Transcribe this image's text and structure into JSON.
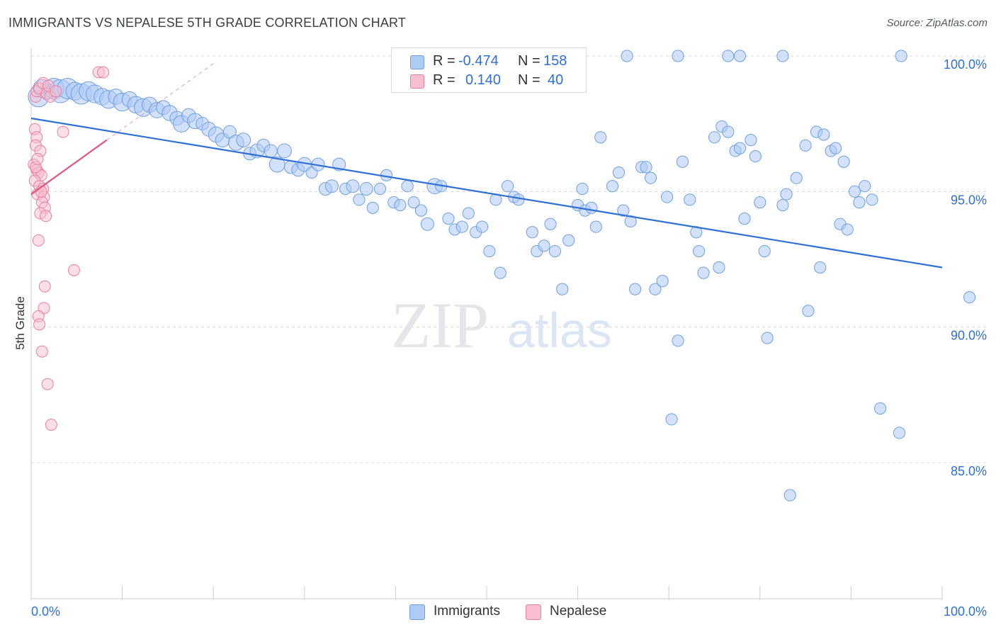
{
  "title": "IMMIGRANTS VS NEPALESE 5TH GRADE CORRELATION CHART",
  "source": "Source: ZipAtlas.com",
  "watermark": {
    "zip": "ZIP",
    "atlas": "atlas"
  },
  "colors": {
    "immigrants_fill": "#aecbf5",
    "immigrants_stroke": "#6f9fe0",
    "immigrants_line": "#2f6fd6",
    "nepalese_fill": "#f8bfd0",
    "nepalese_stroke": "#ea7fa0",
    "nepalese_line": "#e0557f",
    "axis_label": "#2f6fd6",
    "grid": "#d5d9de"
  },
  "legend_box": {
    "rows": [
      {
        "r_label": "R =",
        "r_value": "-0.474",
        "n_label": "N =",
        "n_value": "158"
      },
      {
        "r_label": "R =",
        "r_value": "0.140",
        "n_label": "N =",
        "n_value": "40"
      }
    ]
  },
  "bottom_legend": {
    "immigrants": "Immigrants",
    "nepalese": "Nepalese"
  },
  "chart_data": {
    "type": "scatter",
    "title": "IMMIGRANTS VS NEPALESE 5TH GRADE CORRELATION CHART",
    "ylabel": "5th Grade",
    "xlabel": "",
    "x_tick_labels": [
      "0.0%",
      "100.0%"
    ],
    "y_tick_labels": [
      "100.0%",
      "95.0%",
      "90.0%",
      "85.0%"
    ],
    "y_ticks": [
      100.0,
      95.0,
      90.0,
      85.0
    ],
    "xlim": [
      0,
      100
    ],
    "ylim": [
      80.5,
      100.9
    ],
    "grid": true,
    "legend": "top-center",
    "series": [
      {
        "name": "Immigrants",
        "r": -0.474,
        "n": 158,
        "trend": {
          "x": [
            0,
            100
          ],
          "y": [
            97.7,
            92.2
          ]
        },
        "points": [
          {
            "x": 0.8,
            "y": 98.5,
            "s": 16
          },
          {
            "x": 1.2,
            "y": 98.8,
            "s": 14
          },
          {
            "x": 1.8,
            "y": 98.7,
            "s": 12
          },
          {
            "x": 2.5,
            "y": 98.8,
            "s": 16
          },
          {
            "x": 3.2,
            "y": 98.7,
            "s": 18
          },
          {
            "x": 4.0,
            "y": 98.8,
            "s": 16
          },
          {
            "x": 4.8,
            "y": 98.7,
            "s": 14
          },
          {
            "x": 5.5,
            "y": 98.6,
            "s": 16
          },
          {
            "x": 6.3,
            "y": 98.7,
            "s": 15
          },
          {
            "x": 7.0,
            "y": 98.6,
            "s": 14
          },
          {
            "x": 7.8,
            "y": 98.5,
            "s": 13
          },
          {
            "x": 8.5,
            "y": 98.4,
            "s": 14
          },
          {
            "x": 9.3,
            "y": 98.5,
            "s": 12
          },
          {
            "x": 10.0,
            "y": 98.3,
            "s": 14
          },
          {
            "x": 10.8,
            "y": 98.4,
            "s": 12
          },
          {
            "x": 11.5,
            "y": 98.2,
            "s": 13
          },
          {
            "x": 12.3,
            "y": 98.1,
            "s": 14
          },
          {
            "x": 13.0,
            "y": 98.2,
            "s": 12
          },
          {
            "x": 13.8,
            "y": 98.0,
            "s": 12
          },
          {
            "x": 14.5,
            "y": 98.1,
            "s": 11
          },
          {
            "x": 15.2,
            "y": 97.9,
            "s": 12
          },
          {
            "x": 16.0,
            "y": 97.7,
            "s": 11
          },
          {
            "x": 16.5,
            "y": 97.5,
            "s": 13
          },
          {
            "x": 17.3,
            "y": 97.8,
            "s": 11
          },
          {
            "x": 18.0,
            "y": 97.6,
            "s": 12
          },
          {
            "x": 18.8,
            "y": 97.5,
            "s": 10
          },
          {
            "x": 19.5,
            "y": 97.3,
            "s": 11
          },
          {
            "x": 20.3,
            "y": 97.1,
            "s": 12
          },
          {
            "x": 21.0,
            "y": 96.9,
            "s": 11
          },
          {
            "x": 21.8,
            "y": 97.2,
            "s": 10
          },
          {
            "x": 22.5,
            "y": 96.8,
            "s": 12
          },
          {
            "x": 23.3,
            "y": 96.9,
            "s": 11
          },
          {
            "x": 24.0,
            "y": 96.4,
            "s": 10
          },
          {
            "x": 24.8,
            "y": 96.5,
            "s": 11
          },
          {
            "x": 25.5,
            "y": 96.7,
            "s": 10
          },
          {
            "x": 26.3,
            "y": 96.5,
            "s": 10
          },
          {
            "x": 27.0,
            "y": 96.0,
            "s": 12
          },
          {
            "x": 27.8,
            "y": 96.5,
            "s": 11
          },
          {
            "x": 28.5,
            "y": 95.9,
            "s": 10
          },
          {
            "x": 29.3,
            "y": 95.8,
            "s": 10
          },
          {
            "x": 30.0,
            "y": 96.0,
            "s": 11
          },
          {
            "x": 30.8,
            "y": 95.7,
            "s": 9
          },
          {
            "x": 31.5,
            "y": 96.0,
            "s": 10
          },
          {
            "x": 32.3,
            "y": 95.1,
            "s": 10
          },
          {
            "x": 33.0,
            "y": 95.2,
            "s": 10
          },
          {
            "x": 33.8,
            "y": 96.0,
            "s": 10
          },
          {
            "x": 34.5,
            "y": 95.1,
            "s": 9
          },
          {
            "x": 35.3,
            "y": 95.2,
            "s": 10
          },
          {
            "x": 36.0,
            "y": 94.7,
            "s": 9
          },
          {
            "x": 36.8,
            "y": 95.1,
            "s": 10
          },
          {
            "x": 37.5,
            "y": 94.4,
            "s": 9
          },
          {
            "x": 38.3,
            "y": 95.1,
            "s": 9
          },
          {
            "x": 39.0,
            "y": 95.6,
            "s": 9
          },
          {
            "x": 39.8,
            "y": 94.6,
            "s": 9
          },
          {
            "x": 40.5,
            "y": 94.5,
            "s": 9
          },
          {
            "x": 41.3,
            "y": 95.2,
            "s": 9
          },
          {
            "x": 42.0,
            "y": 94.6,
            "s": 9
          },
          {
            "x": 42.8,
            "y": 94.3,
            "s": 9
          },
          {
            "x": 43.5,
            "y": 93.8,
            "s": 10
          },
          {
            "x": 44.3,
            "y": 95.2,
            "s": 12
          },
          {
            "x": 45.0,
            "y": 95.2,
            "s": 9
          },
          {
            "x": 45.8,
            "y": 94.0,
            "s": 9
          },
          {
            "x": 46.5,
            "y": 93.6,
            "s": 9
          },
          {
            "x": 47.3,
            "y": 93.7,
            "s": 9
          },
          {
            "x": 48.0,
            "y": 94.2,
            "s": 9
          },
          {
            "x": 48.8,
            "y": 93.5,
            "s": 9
          },
          {
            "x": 49.5,
            "y": 93.7,
            "s": 9
          },
          {
            "x": 50.3,
            "y": 92.8,
            "s": 9
          },
          {
            "x": 51.0,
            "y": 94.7,
            "s": 9
          },
          {
            "x": 51.5,
            "y": 92.0,
            "s": 9
          },
          {
            "x": 52.3,
            "y": 95.2,
            "s": 9
          },
          {
            "x": 53.0,
            "y": 94.8,
            "s": 9
          },
          {
            "x": 53.5,
            "y": 94.7,
            "s": 9
          },
          {
            "x": 55.0,
            "y": 93.5,
            "s": 9
          },
          {
            "x": 55.5,
            "y": 92.8,
            "s": 9
          },
          {
            "x": 56.3,
            "y": 93.0,
            "s": 9
          },
          {
            "x": 57.0,
            "y": 93.8,
            "s": 9
          },
          {
            "x": 57.5,
            "y": 92.8,
            "s": 9
          },
          {
            "x": 58.3,
            "y": 91.4,
            "s": 9
          },
          {
            "x": 59.0,
            "y": 93.2,
            "s": 9
          },
          {
            "x": 60.0,
            "y": 94.5,
            "s": 9
          },
          {
            "x": 60.5,
            "y": 95.1,
            "s": 9
          },
          {
            "x": 60.8,
            "y": 94.3,
            "s": 9
          },
          {
            "x": 61.5,
            "y": 94.4,
            "s": 9
          },
          {
            "x": 62.0,
            "y": 93.7,
            "s": 9
          },
          {
            "x": 62.5,
            "y": 97.0,
            "s": 9
          },
          {
            "x": 63.8,
            "y": 95.2,
            "s": 9
          },
          {
            "x": 64.5,
            "y": 95.7,
            "s": 9
          },
          {
            "x": 65.0,
            "y": 94.3,
            "s": 9
          },
          {
            "x": 65.8,
            "y": 93.9,
            "s": 9
          },
          {
            "x": 66.3,
            "y": 91.4,
            "s": 9
          },
          {
            "x": 67.0,
            "y": 95.9,
            "s": 9
          },
          {
            "x": 67.5,
            "y": 95.9,
            "s": 9
          },
          {
            "x": 68.0,
            "y": 95.5,
            "s": 9
          },
          {
            "x": 68.5,
            "y": 91.4,
            "s": 9
          },
          {
            "x": 69.3,
            "y": 91.7,
            "s": 9
          },
          {
            "x": 69.8,
            "y": 94.8,
            "s": 9
          },
          {
            "x": 70.3,
            "y": 86.6,
            "s": 9
          },
          {
            "x": 71.0,
            "y": 89.5,
            "s": 9
          },
          {
            "x": 71.5,
            "y": 96.1,
            "s": 9
          },
          {
            "x": 72.3,
            "y": 94.7,
            "s": 9
          },
          {
            "x": 73.0,
            "y": 93.5,
            "s": 9
          },
          {
            "x": 73.3,
            "y": 92.8,
            "s": 9
          },
          {
            "x": 73.8,
            "y": 92.0,
            "s": 9
          },
          {
            "x": 75.0,
            "y": 97.0,
            "s": 9
          },
          {
            "x": 75.5,
            "y": 92.2,
            "s": 9
          },
          {
            "x": 75.8,
            "y": 97.4,
            "s": 9
          },
          {
            "x": 76.5,
            "y": 97.2,
            "s": 9
          },
          {
            "x": 77.3,
            "y": 96.5,
            "s": 9
          },
          {
            "x": 77.8,
            "y": 96.6,
            "s": 9
          },
          {
            "x": 78.3,
            "y": 94.0,
            "s": 9
          },
          {
            "x": 79.0,
            "y": 96.9,
            "s": 9
          },
          {
            "x": 79.5,
            "y": 96.3,
            "s": 9
          },
          {
            "x": 80.0,
            "y": 94.6,
            "s": 9
          },
          {
            "x": 80.5,
            "y": 92.8,
            "s": 9
          },
          {
            "x": 80.8,
            "y": 89.6,
            "s": 9
          },
          {
            "x": 82.5,
            "y": 94.5,
            "s": 9
          },
          {
            "x": 82.9,
            "y": 94.9,
            "s": 9
          },
          {
            "x": 83.3,
            "y": 83.8,
            "s": 9
          },
          {
            "x": 84.0,
            "y": 95.5,
            "s": 9
          },
          {
            "x": 85.0,
            "y": 96.7,
            "s": 9
          },
          {
            "x": 85.3,
            "y": 90.6,
            "s": 9
          },
          {
            "x": 86.2,
            "y": 97.2,
            "s": 9
          },
          {
            "x": 86.6,
            "y": 92.2,
            "s": 9
          },
          {
            "x": 87.0,
            "y": 97.1,
            "s": 9
          },
          {
            "x": 87.8,
            "y": 96.5,
            "s": 9
          },
          {
            "x": 88.3,
            "y": 96.6,
            "s": 9
          },
          {
            "x": 88.8,
            "y": 93.8,
            "s": 9
          },
          {
            "x": 89.2,
            "y": 96.1,
            "s": 9
          },
          {
            "x": 89.6,
            "y": 93.6,
            "s": 9
          },
          {
            "x": 90.4,
            "y": 95.0,
            "s": 9
          },
          {
            "x": 90.9,
            "y": 94.6,
            "s": 9
          },
          {
            "x": 91.5,
            "y": 95.2,
            "s": 9
          },
          {
            "x": 92.3,
            "y": 94.7,
            "s": 9
          },
          {
            "x": 93.2,
            "y": 87.0,
            "s": 9
          },
          {
            "x": 95.3,
            "y": 86.1,
            "s": 9
          },
          {
            "x": 103.0,
            "y": 91.1,
            "s": 9
          },
          {
            "x": 65.4,
            "y": 100.0,
            "s": 9
          },
          {
            "x": 71.0,
            "y": 100.0,
            "s": 9
          },
          {
            "x": 76.5,
            "y": 100.0,
            "s": 9
          },
          {
            "x": 77.8,
            "y": 100.0,
            "s": 9
          },
          {
            "x": 82.5,
            "y": 100.0,
            "s": 9
          },
          {
            "x": 95.5,
            "y": 100.0,
            "s": 9
          }
        ]
      },
      {
        "name": "Nepalese",
        "r": 0.14,
        "n": 40,
        "trend": {
          "x": [
            0,
            8.3
          ],
          "y": [
            94.9,
            96.9
          ]
        },
        "points": [
          {
            "x": 0.5,
            "y": 98.5,
            "s": 8
          },
          {
            "x": 0.6,
            "y": 98.7,
            "s": 8
          },
          {
            "x": 0.9,
            "y": 98.8,
            "s": 8
          },
          {
            "x": 1.3,
            "y": 99.0,
            "s": 8
          },
          {
            "x": 1.7,
            "y": 98.6,
            "s": 8
          },
          {
            "x": 2.1,
            "y": 98.5,
            "s": 8
          },
          {
            "x": 7.4,
            "y": 99.4,
            "s": 8
          },
          {
            "x": 7.9,
            "y": 99.4,
            "s": 8
          },
          {
            "x": 0.4,
            "y": 97.3,
            "s": 8
          },
          {
            "x": 0.6,
            "y": 97.0,
            "s": 8
          },
          {
            "x": 0.5,
            "y": 96.7,
            "s": 8
          },
          {
            "x": 1.0,
            "y": 96.5,
            "s": 8
          },
          {
            "x": 3.5,
            "y": 97.2,
            "s": 8
          },
          {
            "x": 0.3,
            "y": 96.0,
            "s": 8
          },
          {
            "x": 0.6,
            "y": 95.8,
            "s": 8
          },
          {
            "x": 0.8,
            "y": 95.7,
            "s": 8
          },
          {
            "x": 1.1,
            "y": 95.6,
            "s": 8
          },
          {
            "x": 0.4,
            "y": 95.4,
            "s": 8
          },
          {
            "x": 0.9,
            "y": 95.2,
            "s": 8
          },
          {
            "x": 1.3,
            "y": 95.1,
            "s": 8
          },
          {
            "x": 0.7,
            "y": 94.9,
            "s": 8
          },
          {
            "x": 1.4,
            "y": 94.8,
            "s": 8
          },
          {
            "x": 1.2,
            "y": 94.6,
            "s": 8
          },
          {
            "x": 1.5,
            "y": 94.4,
            "s": 8
          },
          {
            "x": 1.0,
            "y": 94.2,
            "s": 8
          },
          {
            "x": 1.6,
            "y": 94.1,
            "s": 8
          },
          {
            "x": 0.8,
            "y": 93.2,
            "s": 8
          },
          {
            "x": 4.7,
            "y": 92.1,
            "s": 8
          },
          {
            "x": 1.5,
            "y": 91.5,
            "s": 8
          },
          {
            "x": 1.4,
            "y": 90.7,
            "s": 8
          },
          {
            "x": 0.8,
            "y": 90.4,
            "s": 8
          },
          {
            "x": 0.9,
            "y": 90.1,
            "s": 8
          },
          {
            "x": 1.2,
            "y": 89.1,
            "s": 8
          },
          {
            "x": 1.8,
            "y": 87.9,
            "s": 8
          },
          {
            "x": 2.2,
            "y": 86.4,
            "s": 8
          },
          {
            "x": 0.5,
            "y": 95.9,
            "s": 8
          },
          {
            "x": 1.1,
            "y": 95.0,
            "s": 8
          },
          {
            "x": 0.7,
            "y": 96.2,
            "s": 8
          },
          {
            "x": 1.9,
            "y": 98.9,
            "s": 8
          },
          {
            "x": 2.7,
            "y": 98.7,
            "s": 8
          }
        ]
      }
    ]
  }
}
